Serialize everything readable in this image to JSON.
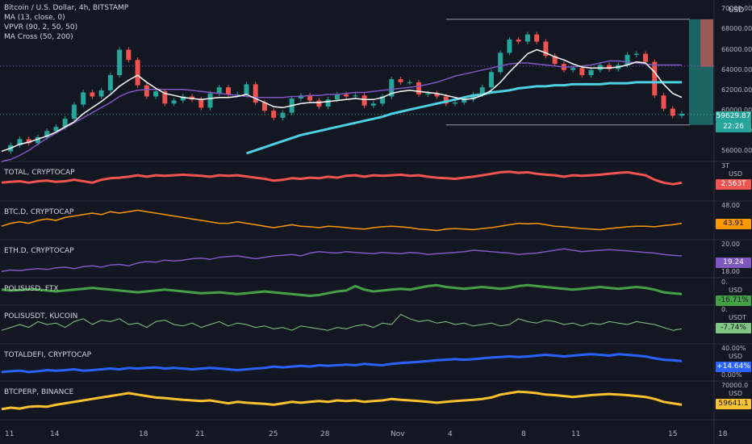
{
  "main": {
    "title": "Bitcoin / U.S. Dollar, 4h, BITSTAMP",
    "indicators": [
      "MA (13, close, 0)",
      "VPVR (90, 2, 50, 50)",
      "MA Cross (50, 200)"
    ],
    "currency": "USD",
    "y_ticks": [
      "70000.00",
      "68000.00",
      "66000.00",
      "64000.00",
      "62000.00",
      "60000.00",
      "58000.00",
      "56000.00"
    ],
    "price_tag": "59629.87",
    "countdown": "22:26"
  },
  "x_ticks": [
    "11",
    "14",
    "18",
    "21",
    "25",
    "28",
    "Nov",
    "4",
    "8",
    "11",
    "15",
    "18"
  ],
  "panes": [
    {
      "name": "TOTAL, CRYPTOCAP",
      "unit": "USD",
      "top_tick": "3T",
      "value_tag": "2.563T",
      "color": "#f05350",
      "tag_bg": "#f05350",
      "tag_fg": "#ffffff"
    },
    {
      "name": "BTC.D, CRYPTOCAP",
      "unit": "",
      "top_tick": "48.00",
      "value_tag": "43.91",
      "color": "#ff9800",
      "tag_bg": "#ff9800",
      "tag_fg": "#131722"
    },
    {
      "name": "ETH.D, CRYPTOCAP",
      "unit": "",
      "top_tick": "20.00",
      "bottom_tick": "18.00",
      "value_tag": "19.24",
      "color": "#7e57c2",
      "tag_bg": "#7e57c2",
      "tag_fg": "#ffffff"
    },
    {
      "name": "POLISUSD, FTX",
      "unit": "USD",
      "top_tick": "0.",
      "value_tag": "-16.71%",
      "color": "#43a047",
      "tag_bg": "#43a047",
      "tag_fg": "#131722"
    },
    {
      "name": "POLISUSDT, KUCOIN",
      "unit": "USDT",
      "top_tick": "0.",
      "value_tag": "-7.74%",
      "color": "#81c784",
      "tag_bg": "#81c784",
      "tag_fg": "#131722"
    },
    {
      "name": "TOTALDEFI, CRYPTOCAP",
      "unit": "USD",
      "top_tick": "40.00%",
      "bottom_tick": "0.00%",
      "value_tag": "+14.64%",
      "color": "#2962ff",
      "tag_bg": "#2962ff",
      "tag_fg": "#ffffff"
    },
    {
      "name": "BTCPERP, BINANCE",
      "unit": "USD",
      "top_tick": "70000.0",
      "value_tag": "59641.1",
      "color": "#fbc02d",
      "tag_bg": "#fbc02d",
      "tag_fg": "#131722"
    }
  ],
  "chart_data": {
    "type": "line",
    "title": "Bitcoin / U.S. Dollar, 4h, BITSTAMP",
    "ylim": [
      55000,
      70500
    ],
    "price_series": [
      56000,
      56600,
      57200,
      56800,
      57400,
      58000,
      58400,
      59200,
      60600,
      61800,
      61400,
      62000,
      63500,
      66000,
      65000,
      62500,
      61400,
      61900,
      60700,
      61000,
      61400,
      61100,
      60300,
      61700,
      62300,
      61600,
      61600,
      62600,
      60800,
      60000,
      59300,
      59800,
      61200,
      61500,
      61000,
      60400,
      61100,
      61600,
      61400,
      61500,
      60500,
      60700,
      61400,
      63100,
      62800,
      62800,
      61600,
      61700,
      61400,
      60700,
      60800,
      61100,
      61600,
      62300,
      63800,
      65700,
      67000,
      66800,
      67500,
      66800,
      65400,
      64600,
      64000,
      64200,
      63500,
      64000,
      64500,
      64100,
      64500,
      65500,
      65600,
      64800,
      61500,
      60200,
      59500,
      59700
    ],
    "ma13": [
      56000,
      56300,
      56700,
      56900,
      57200,
      57500,
      57900,
      58400,
      58900,
      59700,
      60300,
      60900,
      61600,
      62400,
      63000,
      63500,
      62800,
      62200,
      61700,
      61500,
      61300,
      61200,
      61100,
      61200,
      61300,
      61300,
      61400,
      61600,
      61200,
      60800,
      60400,
      60300,
      60500,
      60700,
      60800,
      60800,
      60900,
      61000,
      61100,
      61200,
      61100,
      61100,
      61300,
      61700,
      61900,
      62000,
      61900,
      61800,
      61700,
      61500,
      61300,
      61100,
      61200,
      61500,
      62000,
      62800,
      63800,
      64700,
      65600,
      66000,
      65700,
      65300,
      65000,
      64600,
      64300,
      64200,
      64200,
      64200,
      64300,
      64500,
      64800,
      64700,
      63800,
      62600,
      61700,
      61300
    ],
    "ma50": [
      55000,
      55200,
      55600,
      56100,
      56700,
      57300,
      57800,
      58300,
      58800,
      59300,
      59800,
      60300,
      60800,
      61400,
      61800,
      62000,
      62100,
      62100,
      62100,
      62100,
      62100,
      62000,
      61900,
      61800,
      61700,
      61600,
      61500,
      61400,
      61300,
      61300,
      61300,
      61300,
      61400,
      61400,
      61500,
      61500,
      61600,
      61600,
      61700,
      61800,
      61800,
      61900,
      62000,
      62100,
      62200,
      62300,
      62400,
      62600,
      62800,
      63100,
      63400,
      63600,
      63800,
      64000,
      64200,
      64400,
      64600,
      64700,
      64700,
      64600,
      64500,
      64400,
      64300,
      64300,
      64400,
      64500,
      64700,
      64900,
      64900,
      64800,
      64700,
      64600,
      64500,
      64500,
      64500,
      64500
    ],
    "ma200": [
      null,
      null,
      null,
      null,
      null,
      null,
      null,
      null,
      null,
      null,
      null,
      null,
      null,
      null,
      null,
      null,
      null,
      null,
      null,
      null,
      null,
      null,
      null,
      null,
      null,
      null,
      null,
      55800,
      56100,
      56400,
      56700,
      57000,
      57300,
      57600,
      57800,
      58000,
      58200,
      58400,
      58600,
      58800,
      59000,
      59200,
      59400,
      59700,
      59900,
      60100,
      60300,
      60500,
      60700,
      60900,
      61100,
      61300,
      61500,
      61600,
      61800,
      61900,
      62000,
      62200,
      62300,
      62400,
      62400,
      62500,
      62500,
      62600,
      62600,
      62600,
      62600,
      62700,
      62700,
      62700,
      62800,
      62800,
      62800,
      62800,
      62800,
      62800
    ],
    "range_box": {
      "high": 69000,
      "low": 58600
    },
    "current_price": 59629.87,
    "pane_series": [
      [
        0.55,
        0.52,
        0.5,
        0.55,
        0.5,
        0.48,
        0.52,
        0.5,
        0.45,
        0.5,
        0.55,
        0.45,
        0.4,
        0.38,
        0.35,
        0.3,
        0.35,
        0.3,
        0.32,
        0.3,
        0.28,
        0.3,
        0.32,
        0.35,
        0.3,
        0.32,
        0.3,
        0.34,
        0.38,
        0.42,
        0.48,
        0.45,
        0.4,
        0.42,
        0.38,
        0.4,
        0.35,
        0.38,
        0.32,
        0.3,
        0.35,
        0.3,
        0.32,
        0.3,
        0.28,
        0.32,
        0.3,
        0.35,
        0.38,
        0.4,
        0.42,
        0.38,
        0.35,
        0.3,
        0.25,
        0.2,
        0.18,
        0.22,
        0.2,
        0.25,
        0.28,
        0.3,
        0.35,
        0.3,
        0.32,
        0.3,
        0.28,
        0.25,
        0.22,
        0.2,
        0.25,
        0.3,
        0.45,
        0.55,
        0.6,
        0.55
      ],
      [
        0.7,
        0.6,
        0.55,
        0.6,
        0.5,
        0.45,
        0.5,
        0.4,
        0.35,
        0.3,
        0.25,
        0.3,
        0.2,
        0.25,
        0.2,
        0.15,
        0.2,
        0.25,
        0.3,
        0.35,
        0.4,
        0.45,
        0.5,
        0.55,
        0.6,
        0.6,
        0.55,
        0.6,
        0.65,
        0.7,
        0.75,
        0.7,
        0.65,
        0.7,
        0.72,
        0.75,
        0.7,
        0.72,
        0.75,
        0.78,
        0.8,
        0.75,
        0.72,
        0.7,
        0.72,
        0.75,
        0.8,
        0.82,
        0.85,
        0.8,
        0.78,
        0.8,
        0.82,
        0.78,
        0.75,
        0.7,
        0.65,
        0.6,
        0.62,
        0.6,
        0.65,
        0.7,
        0.72,
        0.75,
        0.78,
        0.8,
        0.82,
        0.78,
        0.75,
        0.72,
        0.7,
        0.7,
        0.72,
        0.68,
        0.65,
        0.6
      ],
      [
        0.95,
        0.9,
        0.92,
        0.88,
        0.85,
        0.88,
        0.82,
        0.8,
        0.85,
        0.78,
        0.75,
        0.8,
        0.72,
        0.7,
        0.75,
        0.65,
        0.6,
        0.62,
        0.55,
        0.58,
        0.55,
        0.5,
        0.48,
        0.52,
        0.45,
        0.42,
        0.4,
        0.45,
        0.5,
        0.45,
        0.4,
        0.38,
        0.35,
        0.4,
        0.3,
        0.25,
        0.28,
        0.3,
        0.25,
        0.28,
        0.3,
        0.32,
        0.28,
        0.3,
        0.32,
        0.28,
        0.3,
        0.35,
        0.32,
        0.3,
        0.28,
        0.25,
        0.2,
        0.22,
        0.25,
        0.28,
        0.3,
        0.35,
        0.32,
        0.3,
        0.25,
        0.2,
        0.15,
        0.2,
        0.25,
        0.22,
        0.2,
        0.18,
        0.2,
        0.22,
        0.25,
        0.28,
        0.3,
        0.35,
        0.38,
        0.4
      ],
      [
        0.4,
        0.45,
        0.42,
        0.38,
        0.4,
        0.45,
        0.5,
        0.45,
        0.4,
        0.35,
        0.3,
        0.35,
        0.4,
        0.45,
        0.5,
        0.55,
        0.5,
        0.45,
        0.4,
        0.45,
        0.5,
        0.55,
        0.6,
        0.58,
        0.55,
        0.6,
        0.65,
        0.6,
        0.55,
        0.5,
        0.55,
        0.6,
        0.65,
        0.7,
        0.75,
        0.7,
        0.6,
        0.5,
        0.45,
        0.2,
        0.4,
        0.5,
        0.45,
        0.4,
        0.35,
        0.4,
        0.3,
        0.2,
        0.15,
        0.25,
        0.3,
        0.35,
        0.3,
        0.25,
        0.3,
        0.35,
        0.3,
        0.2,
        0.15,
        0.2,
        0.25,
        0.3,
        0.35,
        0.4,
        0.35,
        0.3,
        0.25,
        0.3,
        0.35,
        0.3,
        0.25,
        0.3,
        0.4,
        0.55,
        0.6,
        0.65
      ],
      [
        0.7,
        0.6,
        0.5,
        0.6,
        0.4,
        0.5,
        0.45,
        0.6,
        0.4,
        0.3,
        0.5,
        0.35,
        0.4,
        0.3,
        0.5,
        0.45,
        0.6,
        0.4,
        0.35,
        0.5,
        0.55,
        0.45,
        0.6,
        0.5,
        0.4,
        0.55,
        0.45,
        0.5,
        0.6,
        0.55,
        0.65,
        0.6,
        0.7,
        0.55,
        0.6,
        0.65,
        0.7,
        0.6,
        0.65,
        0.55,
        0.5,
        0.6,
        0.45,
        0.5,
        0.15,
        0.3,
        0.4,
        0.35,
        0.45,
        0.4,
        0.5,
        0.45,
        0.55,
        0.5,
        0.45,
        0.55,
        0.5,
        0.3,
        0.4,
        0.45,
        0.35,
        0.4,
        0.5,
        0.45,
        0.55,
        0.45,
        0.5,
        0.4,
        0.45,
        0.5,
        0.4,
        0.45,
        0.5,
        0.6,
        0.7,
        0.65
      ],
      [
        0.85,
        0.82,
        0.8,
        0.85,
        0.82,
        0.78,
        0.8,
        0.78,
        0.75,
        0.8,
        0.78,
        0.75,
        0.72,
        0.75,
        0.7,
        0.72,
        0.7,
        0.68,
        0.72,
        0.7,
        0.72,
        0.75,
        0.72,
        0.7,
        0.72,
        0.75,
        0.78,
        0.75,
        0.72,
        0.7,
        0.65,
        0.68,
        0.65,
        0.62,
        0.65,
        0.6,
        0.62,
        0.6,
        0.58,
        0.6,
        0.55,
        0.58,
        0.6,
        0.55,
        0.52,
        0.5,
        0.48,
        0.45,
        0.42,
        0.4,
        0.38,
        0.4,
        0.38,
        0.35,
        0.32,
        0.3,
        0.28,
        0.3,
        0.28,
        0.25,
        0.22,
        0.25,
        0.28,
        0.25,
        0.22,
        0.2,
        0.22,
        0.25,
        0.2,
        0.22,
        0.25,
        0.28,
        0.35,
        0.4,
        0.42,
        0.45
      ],
      [
        0.8,
        0.75,
        0.78,
        0.72,
        0.7,
        0.72,
        0.65,
        0.6,
        0.55,
        0.5,
        0.45,
        0.4,
        0.35,
        0.3,
        0.25,
        0.3,
        0.35,
        0.4,
        0.42,
        0.45,
        0.48,
        0.5,
        0.52,
        0.5,
        0.55,
        0.6,
        0.55,
        0.58,
        0.6,
        0.62,
        0.65,
        0.6,
        0.55,
        0.58,
        0.55,
        0.52,
        0.55,
        0.5,
        0.52,
        0.5,
        0.55,
        0.52,
        0.5,
        0.45,
        0.48,
        0.5,
        0.52,
        0.55,
        0.58,
        0.55,
        0.52,
        0.5,
        0.48,
        0.45,
        0.4,
        0.3,
        0.25,
        0.2,
        0.22,
        0.25,
        0.3,
        0.32,
        0.35,
        0.38,
        0.35,
        0.32,
        0.3,
        0.28,
        0.3,
        0.32,
        0.35,
        0.38,
        0.45,
        0.55,
        0.6,
        0.65
      ]
    ]
  }
}
